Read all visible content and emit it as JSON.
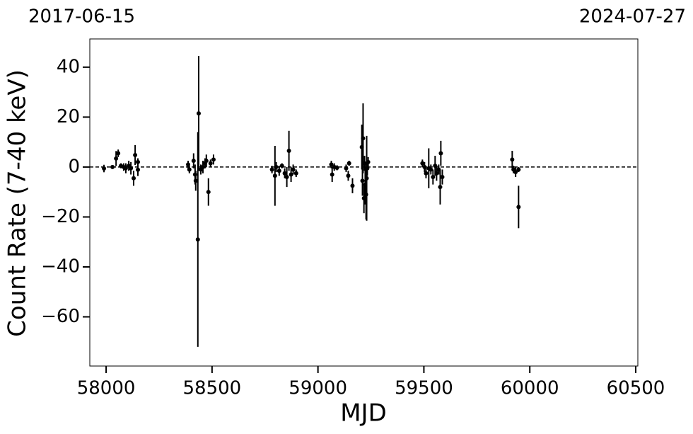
{
  "chart_data": {
    "type": "scatter",
    "top_left_label": "2017-06-15",
    "top_right_label": "2024-07-27",
    "xlabel": "MJD",
    "ylabel": "Count Rate (7-40 keV)",
    "color": "#000000",
    "hline": 0,
    "xlim": [
      57923,
      60510
    ],
    "ylim": [
      -79.7,
      51.3
    ],
    "xticks": [
      58000,
      58500,
      59000,
      59500,
      60000,
      60500
    ],
    "yticks": [
      40,
      20,
      0,
      {
        "value": -20,
        "label": "−20"
      },
      {
        "value": -40,
        "label": "−40"
      },
      {
        "value": -60,
        "label": "−60"
      }
    ],
    "x": [
      57990,
      58030,
      58047,
      58057,
      58070,
      58083,
      58093,
      58107,
      58117,
      58130,
      58137,
      58150,
      58150,
      58387,
      58393,
      58413,
      58420,
      58423,
      58433,
      58437,
      58447,
      58457,
      58467,
      58473,
      58483,
      58493,
      58507,
      58783,
      58797,
      58803,
      58817,
      58830,
      58843,
      58853,
      58863,
      58873,
      58883,
      58897,
      59063,
      59067,
      59077,
      59090,
      59133,
      59143,
      59147,
      59163,
      59207,
      59213,
      59210,
      59217,
      59220,
      59223,
      59227,
      59230,
      59233,
      59237,
      59493,
      59503,
      59510,
      59523,
      59533,
      59543,
      59553,
      59560,
      59570,
      59577,
      59580,
      59587,
      59917,
      59923,
      59933,
      59947,
      59947
    ],
    "values": [
      -0.6,
      0,
      3.4,
      5.5,
      0.5,
      0,
      -0.5,
      0.5,
      -0.5,
      -4.5,
      4.8,
      -1.1,
      2,
      1,
      -1,
      2.5,
      -3,
      -5.5,
      -29,
      21.5,
      -1,
      0,
      1.5,
      2.5,
      -10,
      1.5,
      3,
      -1,
      -3.5,
      0,
      -1.5,
      0.5,
      -2.5,
      -4,
      6.5,
      -3,
      -1,
      -2.5,
      1,
      -3,
      0,
      -0.3,
      -0.5,
      -3.5,
      1.5,
      -7.5,
      8,
      11.5,
      -5.5,
      -12.5,
      1.5,
      -7,
      -11,
      -4.5,
      -0.5,
      2,
      1.5,
      0,
      -2.5,
      -0.5,
      -1,
      -4,
      0.5,
      -2.5,
      -1,
      -8,
      5.5,
      -4,
      3,
      -1,
      -2,
      -1,
      -16
    ],
    "errors": [
      1.5,
      0.5,
      3,
      1.5,
      1,
      1.5,
      2,
      2,
      2.5,
      3,
      4,
      2.5,
      1.5,
      1.5,
      1.5,
      3,
      4,
      4,
      43,
      23,
      2,
      2.5,
      2,
      2.5,
      5.5,
      1.5,
      2,
      1.5,
      12,
      2,
      2,
      1,
      2,
      4,
      8,
      3,
      2,
      1.5,
      1.5,
      3,
      1.5,
      1,
      1.5,
      2,
      1,
      3,
      9,
      14,
      6,
      6,
      3,
      8,
      10,
      17,
      3,
      2,
      1.5,
      2,
      2,
      8,
      2,
      3,
      4,
      3,
      2,
      7,
      5,
      3,
      3.5,
      1.5,
      2,
      1,
      8.5
    ]
  }
}
